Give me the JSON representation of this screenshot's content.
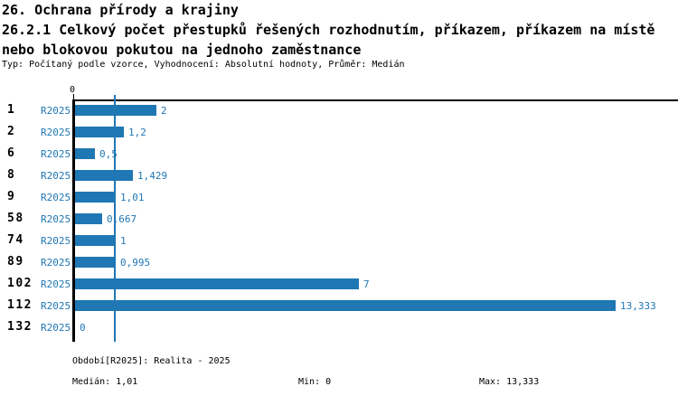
{
  "header": {
    "title_line1": "26. Ochrana přírody a krajiny",
    "title_line2": "26.2.1 Celkový počet přestupků řešených rozhodnutím, příkazem, příkazem na místě",
    "title_line3": "nebo blokovou pokutou na jednoho zaměstnance",
    "meta": "Typ: Počítaný podle vzorce, Vyhodnocení: Absolutní hodnoty, Průměr: Medián"
  },
  "chart_data": {
    "type": "bar",
    "orientation": "horizontal",
    "series_label": "R2025",
    "categories": [
      "1",
      "2",
      "6",
      "8",
      "9",
      "58",
      "74",
      "89",
      "102",
      "112",
      "132"
    ],
    "values": [
      2,
      1.2,
      0.5,
      1.429,
      1.01,
      0.667,
      1,
      0.995,
      7,
      13.333,
      0
    ],
    "value_labels": [
      "2",
      "1,2",
      "0,5",
      "1,429",
      "1,01",
      "0,667",
      "1",
      "0,995",
      "7",
      "13,333",
      "0"
    ],
    "x_axis": {
      "origin_tick_label": "0",
      "min": 0,
      "max": 13.333,
      "grid": false
    },
    "median_value": 1.01,
    "median_line_shown": true,
    "bar_color": "#1f77b4",
    "label_color": "#1f77b4",
    "axis_color": "#000000"
  },
  "footer": {
    "period": "Období[R2025]: Realita - 2025",
    "median": "Medián: 1,01",
    "min": "Min: 0",
    "max": "Max: 13,333"
  }
}
